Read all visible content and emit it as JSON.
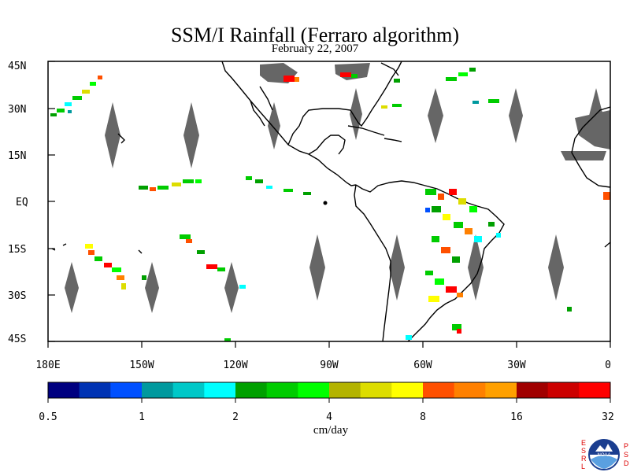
{
  "title": "SSM/I Rainfall (Ferraro algorithm)",
  "date": "February 22, 2007",
  "map": {
    "lon_range": [
      180,
      360
    ],
    "lat_range": [
      -45,
      45
    ],
    "y_ticks": [
      "45N",
      "30N",
      "15N",
      "EQ",
      "15S",
      "30S",
      "45S"
    ],
    "x_ticks": [
      "180E",
      "150W",
      "120W",
      "90W",
      "60W",
      "30W",
      "0"
    ],
    "missing_color": "#666666",
    "coastline_color": "#000000"
  },
  "colorbar": {
    "colors": [
      "#000080",
      "#0033b3",
      "#0050ff",
      "#00999e",
      "#00c8c8",
      "#00ffff",
      "#00a000",
      "#00cc00",
      "#00ff00",
      "#b3b300",
      "#dddd00",
      "#ffff00",
      "#ff5000",
      "#ff8000",
      "#ffa000",
      "#a00000",
      "#cc0000",
      "#ff0000"
    ],
    "labels": [
      "0.5",
      "1",
      "2",
      "4",
      "8",
      "16",
      "32"
    ],
    "units": "cm/day"
  },
  "logo": {
    "left_letters": [
      "E",
      "S",
      "R",
      "L"
    ],
    "right_letters": [
      "P",
      "S",
      "D"
    ],
    "center_text": "NOAA"
  }
}
